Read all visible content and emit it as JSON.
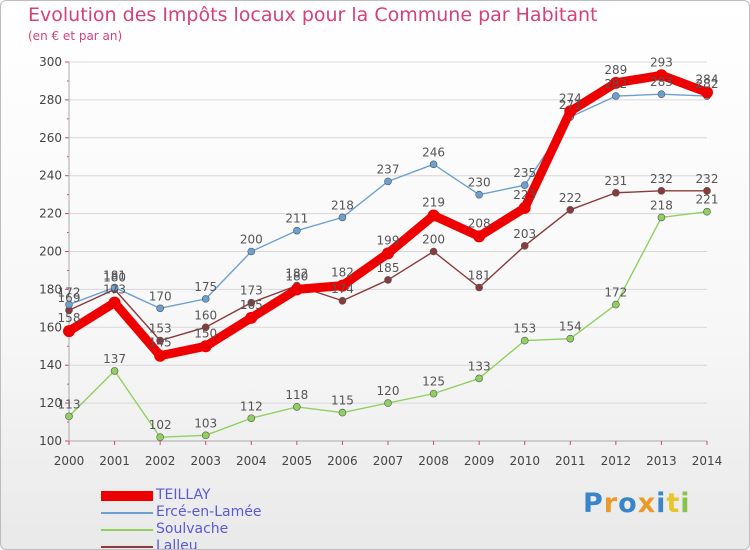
{
  "chart_data": {
    "type": "line",
    "title": "Evolution des Impôts locaux pour la Commune par Habitant",
    "subtitle": "(en € et par an)",
    "categories": [
      "2000",
      "2001",
      "2002",
      "2003",
      "2004",
      "2005",
      "2006",
      "2007",
      "2008",
      "2009",
      "2010",
      "2011",
      "2012",
      "2013",
      "2014"
    ],
    "ylim": [
      100,
      300
    ],
    "yticks": [
      100,
      120,
      140,
      160,
      180,
      200,
      220,
      240,
      260,
      280,
      300
    ],
    "series": [
      {
        "name": "TEILLAY",
        "color": "#ee0000",
        "values": [
          158,
          173,
          145,
          150,
          165,
          180,
          182,
          199,
          219,
          208,
          223,
          274,
          289,
          293,
          284
        ]
      },
      {
        "name": "Ercé-en-Lamée",
        "color": "#6ca0d2",
        "values": [
          172,
          181,
          170,
          175,
          200,
          211,
          218,
          237,
          246,
          230,
          235,
          271,
          282,
          283,
          282
        ]
      },
      {
        "name": "Soulvache",
        "color": "#90d060",
        "values": [
          113,
          137,
          102,
          103,
          112,
          118,
          115,
          120,
          125,
          133,
          153,
          154,
          172,
          218,
          221
        ]
      },
      {
        "name": "Lalleu",
        "color": "#8a3a3a",
        "values": [
          169,
          180,
          153,
          160,
          173,
          182,
          174,
          185,
          200,
          181,
          203,
          222,
          231,
          232,
          232
        ]
      }
    ]
  },
  "brand": {
    "text": "Proxiti"
  }
}
